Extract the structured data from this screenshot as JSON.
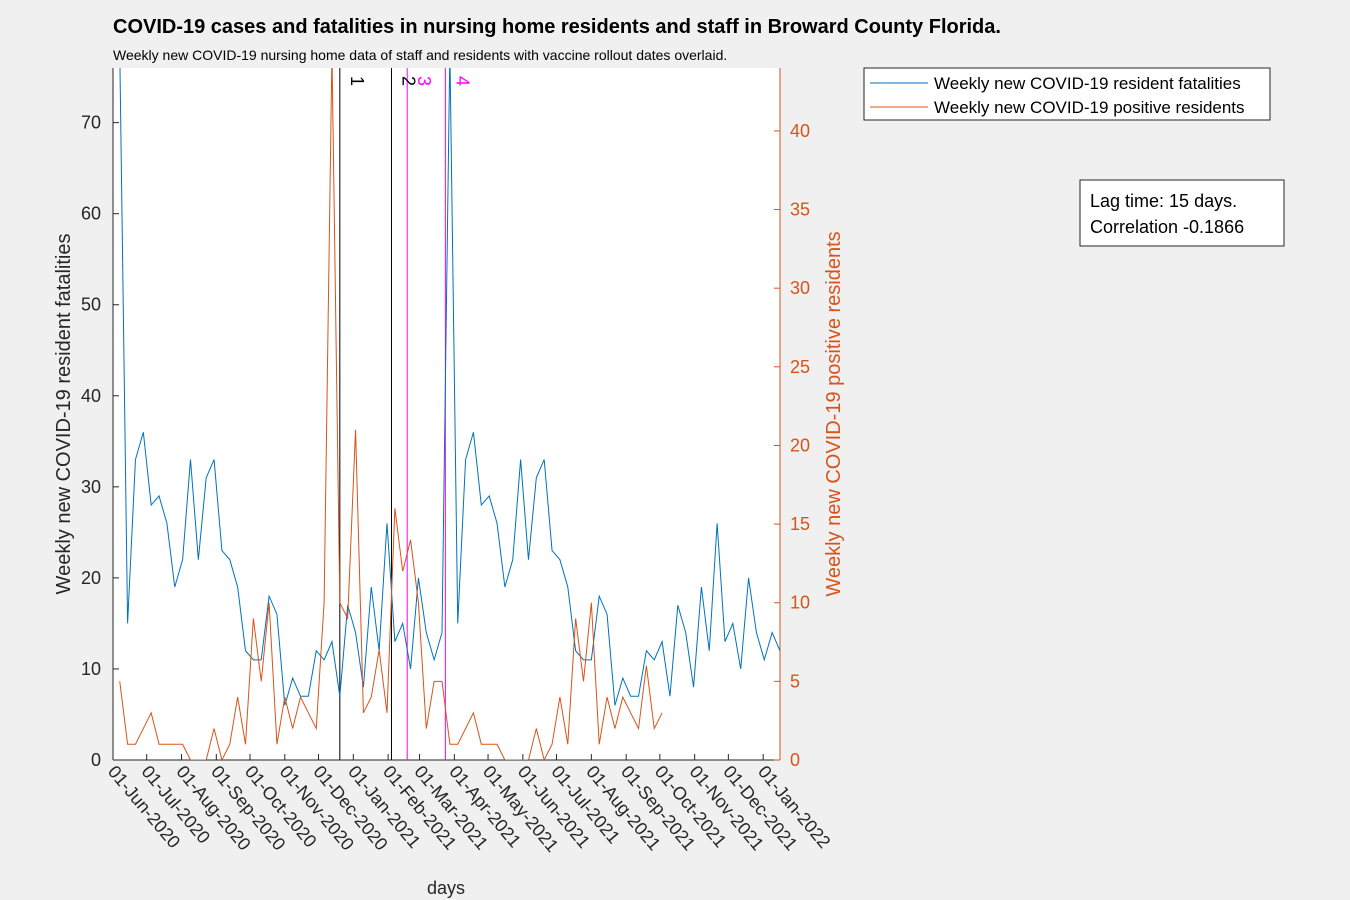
{
  "chart_data": {
    "type": "line",
    "title": "COVID-19 cases and fatalities in nursing home residents and staff in Broward County Florida.",
    "subtitle": "Weekly new COVID-19 nursing home data of staff and residents with vaccine rollout dates overlaid.",
    "xlabel": "days",
    "ylabel": "Weekly new COVID-19 resident fatalities",
    "y2label": "Weekly new COVID-19 positive residents",
    "x": [
      "2020-06-07",
      "2020-06-14",
      "2020-06-21",
      "2020-06-28",
      "2020-07-05",
      "2020-07-12",
      "2020-07-19",
      "2020-07-26",
      "2020-08-02",
      "2020-08-09",
      "2020-08-16",
      "2020-08-23",
      "2020-08-30",
      "2020-09-06",
      "2020-09-13",
      "2020-09-20",
      "2020-09-27",
      "2020-10-04",
      "2020-10-11",
      "2020-10-18",
      "2020-10-25",
      "2020-11-01",
      "2020-11-08",
      "2020-11-15",
      "2020-11-22",
      "2020-11-29",
      "2020-12-06",
      "2020-12-13",
      "2020-12-20",
      "2020-12-27",
      "2021-01-03",
      "2021-01-10",
      "2021-01-17",
      "2021-01-24",
      "2021-01-31",
      "2021-02-07",
      "2021-02-14",
      "2021-02-21",
      "2021-02-28",
      "2021-03-07",
      "2021-03-14",
      "2021-03-21",
      "2021-03-28",
      "2021-04-04",
      "2021-04-11",
      "2021-04-18",
      "2021-04-25",
      "2021-05-02",
      "2021-05-09",
      "2021-05-16",
      "2021-05-23",
      "2021-05-30",
      "2021-06-06",
      "2021-06-13",
      "2021-06-20",
      "2021-06-27",
      "2021-07-04",
      "2021-07-11",
      "2021-07-18",
      "2021-07-25",
      "2021-08-01",
      "2021-08-08",
      "2021-08-15",
      "2021-08-22",
      "2021-08-29",
      "2021-09-05",
      "2021-09-12",
      "2021-09-19",
      "2021-09-26",
      "2021-10-03",
      "2021-10-10",
      "2021-10-17",
      "2021-10-24",
      "2021-10-31",
      "2021-11-07",
      "2021-11-14",
      "2021-11-21",
      "2021-11-28",
      "2021-12-05",
      "2021-12-12",
      "2021-12-19",
      "2021-12-26",
      "2022-01-02",
      "2022-01-09",
      "2022-01-16"
    ],
    "series": [
      {
        "name": "Weekly new COVID-19 resident fatalities",
        "color": "#0072bd",
        "values": [
          78,
          15,
          33,
          36,
          28,
          29,
          26,
          19,
          22,
          33,
          22,
          31,
          33,
          23,
          22,
          19,
          12,
          11,
          11,
          18,
          16,
          6,
          9,
          7,
          7,
          12,
          11,
          13,
          7,
          17,
          14,
          8,
          19,
          12,
          26,
          13,
          15,
          10,
          20,
          14,
          11,
          14,
          78,
          15,
          33,
          36,
          28,
          29,
          26,
          19,
          22,
          33,
          22,
          31,
          33,
          23,
          22,
          19,
          12,
          11,
          11,
          18,
          16,
          6,
          9,
          7,
          7,
          12,
          11,
          13,
          7,
          17,
          14,
          8,
          19,
          12,
          26,
          13,
          15,
          10,
          20,
          14,
          11,
          14,
          12
        ]
      },
      {
        "name": "Weekly new COVID-19 positive residents",
        "color": "#d95319",
        "axis": "y2",
        "values": [
          5,
          1,
          1,
          2,
          3,
          1,
          1,
          1,
          1,
          0,
          0,
          0,
          2,
          0,
          1,
          4,
          1,
          9,
          5,
          10,
          1,
          4,
          2,
          4,
          3,
          2,
          10,
          45,
          10,
          9,
          21,
          3,
          4,
          7,
          3,
          16,
          12,
          14,
          10,
          2,
          5,
          5,
          1,
          1,
          2,
          3,
          1,
          1,
          1,
          0,
          0,
          0,
          0,
          2,
          0,
          1,
          4,
          1,
          9,
          5,
          10,
          1,
          4,
          2,
          4,
          3,
          2,
          6,
          2,
          3,
          null,
          null,
          null,
          null,
          null,
          null,
          null,
          null,
          null,
          null,
          null,
          null,
          null,
          null,
          null
        ]
      }
    ],
    "xlim": [
      "2020-06-01",
      "2022-01-16"
    ],
    "xticks": [
      {
        "value": "2020-06-01",
        "label": "01-Jun-2020"
      },
      {
        "value": "2020-07-01",
        "label": "01-Jul-2020"
      },
      {
        "value": "2020-08-01",
        "label": "01-Aug-2020"
      },
      {
        "value": "2020-09-01",
        "label": "01-Sep-2020"
      },
      {
        "value": "2020-10-01",
        "label": "01-Oct-2020"
      },
      {
        "value": "2020-11-01",
        "label": "01-Nov-2020"
      },
      {
        "value": "2020-12-01",
        "label": "01-Dec-2020"
      },
      {
        "value": "2021-01-01",
        "label": "01-Jan-2021"
      },
      {
        "value": "2021-02-01",
        "label": "01-Feb-2021"
      },
      {
        "value": "2021-03-01",
        "label": "01-Mar-2021"
      },
      {
        "value": "2021-04-01",
        "label": "01-Apr-2021"
      },
      {
        "value": "2021-05-01",
        "label": "01-May-2021"
      },
      {
        "value": "2021-06-01",
        "label": "01-Jun-2021"
      },
      {
        "value": "2021-07-01",
        "label": "01-Jul-2021"
      },
      {
        "value": "2021-08-01",
        "label": "01-Aug-2021"
      },
      {
        "value": "2021-09-01",
        "label": "01-Sep-2021"
      },
      {
        "value": "2021-10-01",
        "label": "01-Oct-2021"
      },
      {
        "value": "2021-11-01",
        "label": "01-Nov-2021"
      },
      {
        "value": "2021-12-01",
        "label": "01-Dec-2021"
      },
      {
        "value": "2022-01-01",
        "label": "01-Jan-2022"
      }
    ],
    "ylim": [
      0,
      76
    ],
    "yticks": [
      0,
      10,
      20,
      30,
      40,
      50,
      60,
      70
    ],
    "y2lim": [
      0,
      44
    ],
    "y2ticks": [
      0,
      5,
      10,
      15,
      20,
      25,
      30,
      35,
      40
    ],
    "vlines": [
      {
        "x": "2020-12-20",
        "label": "1",
        "color": "#000000"
      },
      {
        "x": "2021-02-04",
        "label": "2",
        "color": "#000000"
      },
      {
        "x": "2021-02-18",
        "label": "3",
        "color": "#ff00ff"
      },
      {
        "x": "2021-03-24",
        "label": "4",
        "color": "#ff00ff"
      }
    ],
    "annotation": [
      "Lag time: 15 days.",
      "Correlation -0.1866"
    ],
    "legend": "northeast-outside"
  }
}
